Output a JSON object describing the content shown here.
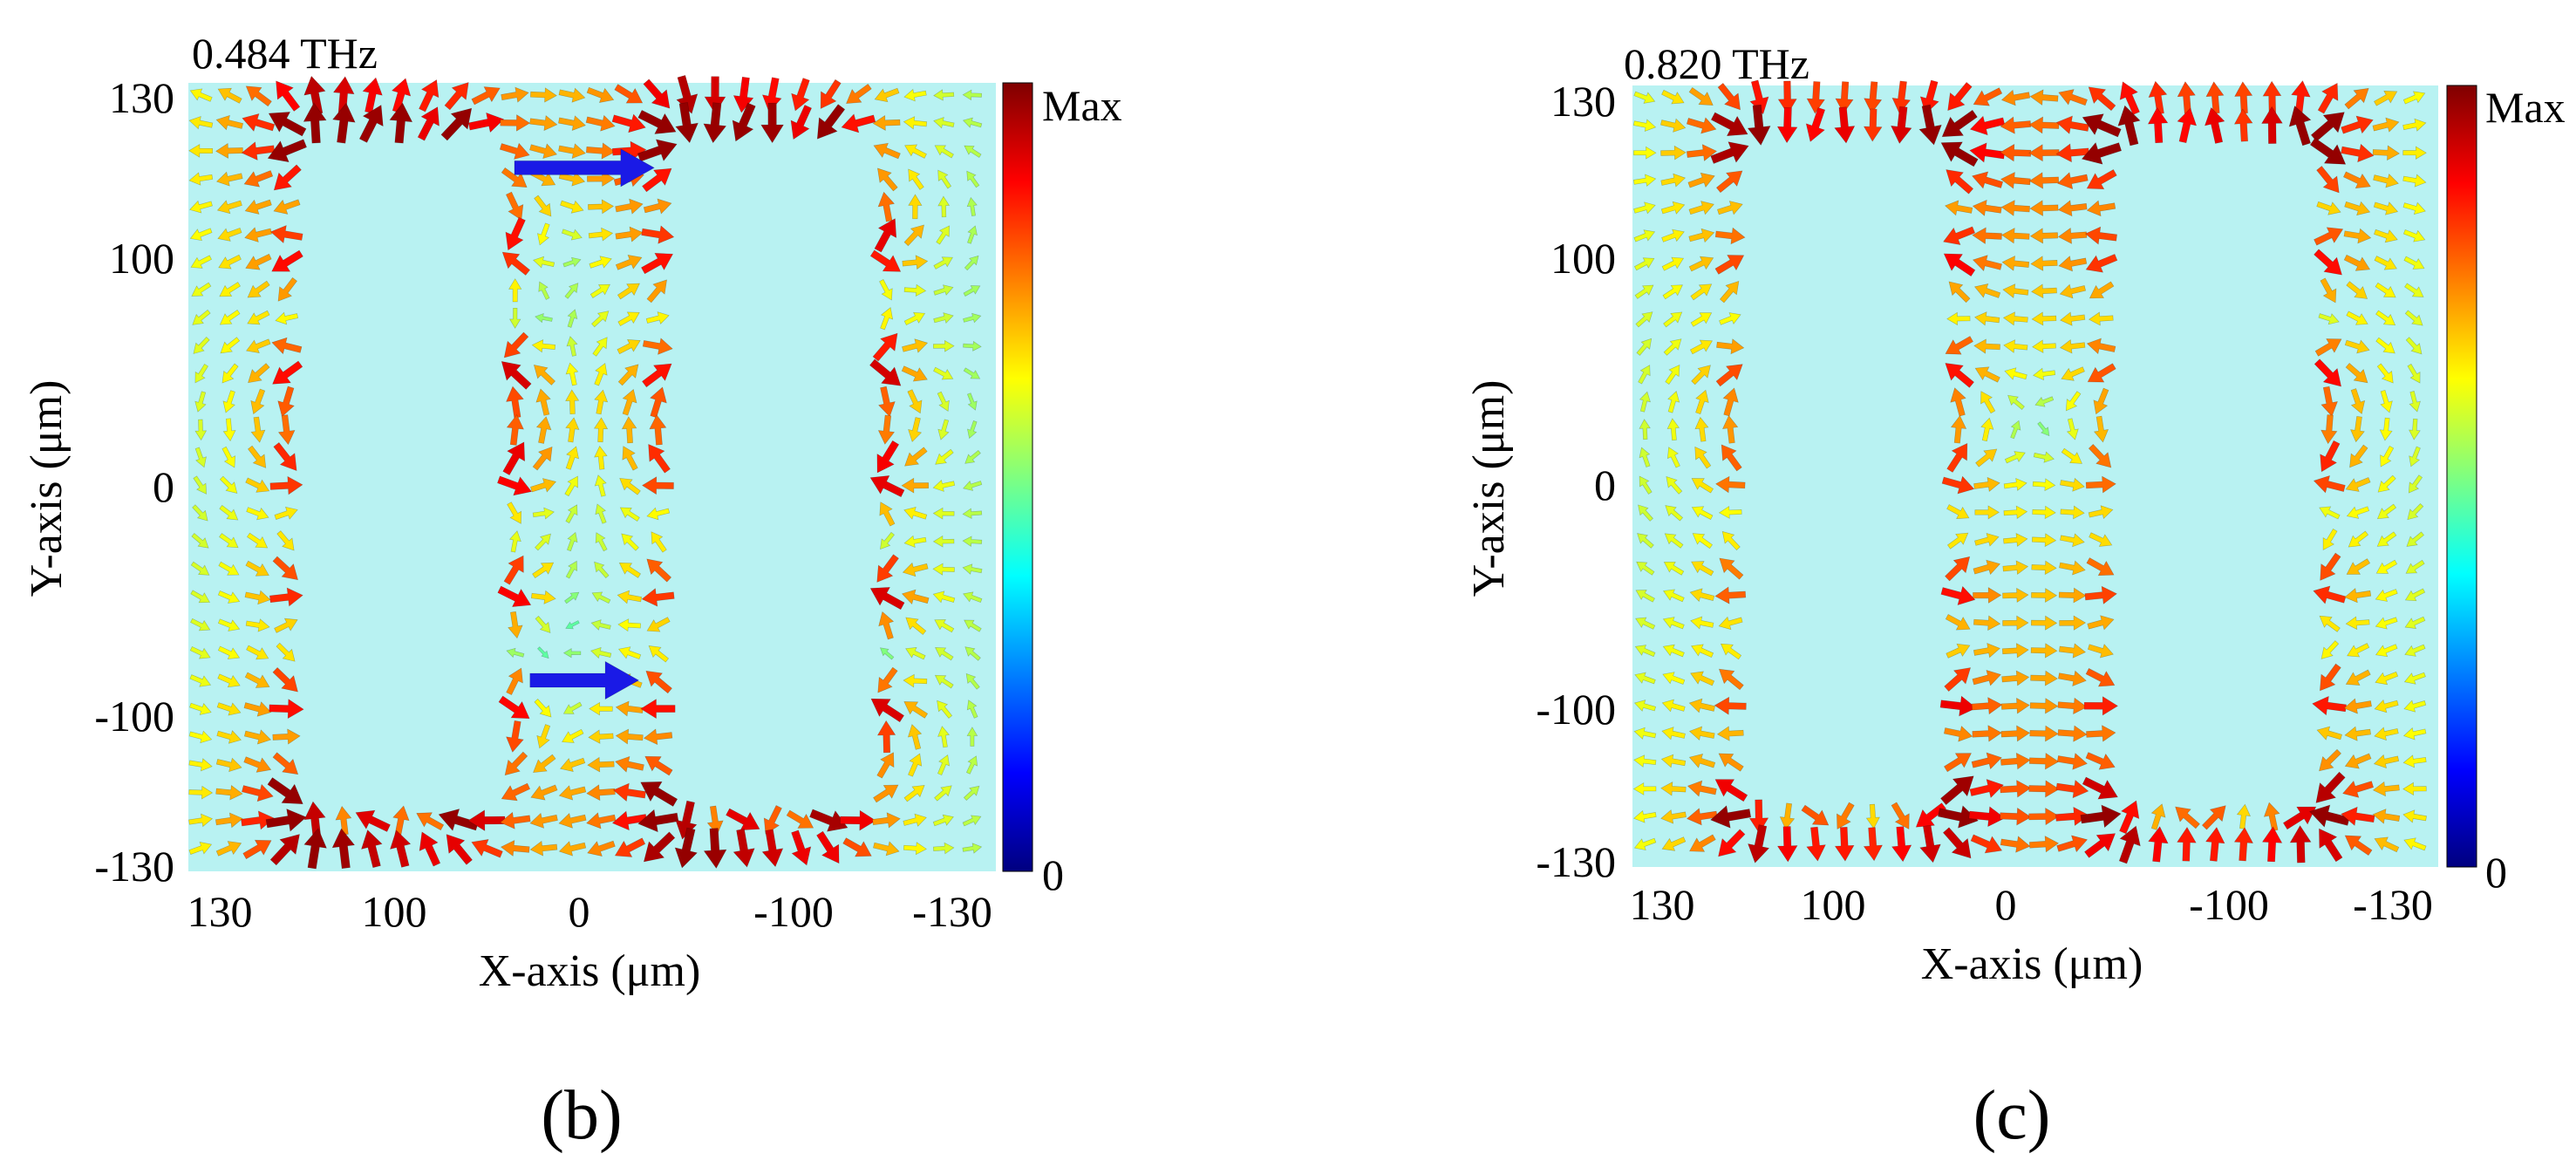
{
  "figure": {
    "panels": [
      {
        "panel_label": "(b)",
        "frequency": "0.484 THz",
        "xlabel": "X-axis (μm)",
        "ylabel": "Y-axis (μm)",
        "x_ticks": [
          "130",
          "100",
          "0",
          "-100",
          "-130"
        ],
        "y_ticks": [
          "130",
          "100",
          "0",
          "-100",
          "-130"
        ],
        "colorbar": {
          "max_label": "Max",
          "min_label": "0"
        }
      },
      {
        "panel_label": "(c)",
        "frequency": "0.820 THz",
        "xlabel": "X-axis (μm)",
        "ylabel": "Y-axis (μm)",
        "x_ticks": [
          "130",
          "100",
          "0",
          "-100",
          "-130"
        ],
        "y_ticks": [
          "130",
          "100",
          "0",
          "-100",
          "-130"
        ],
        "colorbar": {
          "max_label": "Max",
          "min_label": "0"
        }
      }
    ]
  },
  "chart_data": [
    {
      "type": "vector-field",
      "title": "0.484 THz",
      "xlabel": "X-axis (μm)",
      "ylabel": "Y-axis (μm)",
      "xlim": [
        130,
        -130
      ],
      "ylim": [
        -130,
        130
      ],
      "x_tick_values": [
        130,
        100,
        0,
        -100,
        -130
      ],
      "y_tick_values": [
        130,
        100,
        0,
        -100,
        -130
      ],
      "background": "#b8f2f2",
      "mode": "dipole",
      "colorbar": {
        "min": 0,
        "max": "Max",
        "colormap": "jet"
      },
      "resonators": [
        {
          "x_range": [
            90,
            30
          ],
          "y_range": [
            -112,
            112
          ]
        },
        {
          "x_range": [
            -30,
            -90
          ],
          "y_range": [
            -112,
            112
          ]
        }
      ],
      "current_arrows": [
        {
          "x_from": 25,
          "x_to": -20,
          "y": 102,
          "color": "#1a1ae6"
        },
        {
          "x_from": 20,
          "x_to": -15,
          "y": -67,
          "color": "#1a1ae6"
        }
      ]
    },
    {
      "type": "vector-field",
      "title": "0.820 THz",
      "xlabel": "X-axis (μm)",
      "ylabel": "Y-axis (μm)",
      "xlim": [
        130,
        -130
      ],
      "ylim": [
        -130,
        130
      ],
      "x_tick_values": [
        130,
        100,
        0,
        -100,
        -130
      ],
      "y_tick_values": [
        130,
        100,
        0,
        -100,
        -130
      ],
      "background": "#b8f2f2",
      "mode": "quadrupole",
      "colorbar": {
        "min": 0,
        "max": "Max",
        "colormap": "jet"
      },
      "resonators": [
        {
          "x_range": [
            90,
            30
          ],
          "y_range": [
            -112,
            112
          ]
        },
        {
          "x_range": [
            -30,
            -90
          ],
          "y_range": [
            -112,
            112
          ]
        }
      ]
    }
  ]
}
